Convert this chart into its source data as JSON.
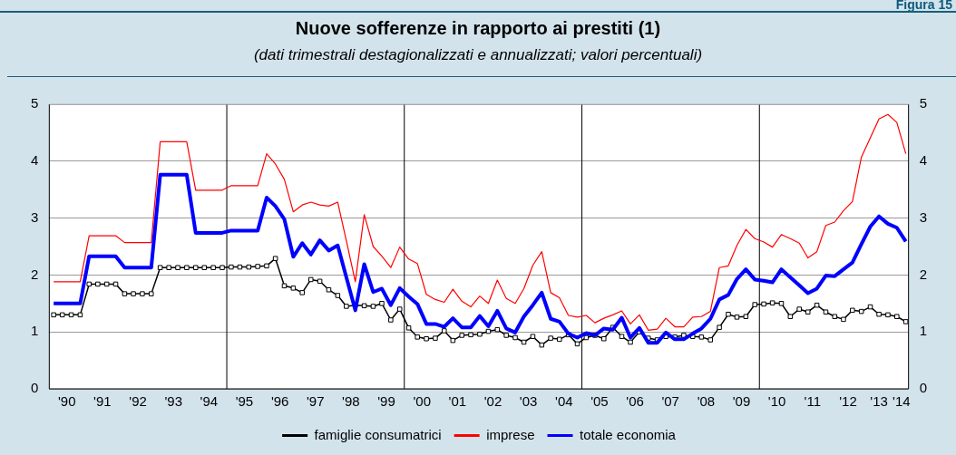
{
  "chart_data": {
    "type": "line",
    "title": "Nuove sofferenze in rapporto ai prestiti (1)",
    "subtitle": "(dati trimestrali destagionalizzati e annualizzati;  valori  percentuali)",
    "annotations": [
      "Figura 15"
    ],
    "x": [
      "1990-02-15",
      "1990-05-15",
      "1990-08-15",
      "1990-11-15",
      "1991-02-15",
      "1991-05-15",
      "1991-08-15",
      "1991-11-15",
      "1992-02-15",
      "1992-05-15",
      "1992-08-15",
      "1992-11-15",
      "1993-02-15",
      "1993-05-15",
      "1993-08-15",
      "1993-11-15",
      "1994-02-15",
      "1994-05-15",
      "1994-08-15",
      "1994-11-15",
      "1995-02-15",
      "1995-05-15",
      "1995-08-15",
      "1995-11-15",
      "1996-02-15",
      "1996-05-15",
      "1996-08-15",
      "1996-11-15",
      "1997-02-15",
      "1997-05-15",
      "1997-08-15",
      "1997-11-15",
      "1998-02-15",
      "1998-05-15",
      "1998-08-15",
      "1998-11-15",
      "1999-02-15",
      "1999-05-15",
      "1999-08-15",
      "1999-11-15",
      "2000-02-15",
      "2000-05-15",
      "2000-08-15",
      "2000-11-15",
      "2001-02-15",
      "2001-05-15",
      "2001-08-15",
      "2001-11-15",
      "2002-02-15",
      "2002-05-15",
      "2002-08-15",
      "2002-11-15",
      "2003-02-15",
      "2003-05-15",
      "2003-08-15",
      "2003-11-15",
      "2004-02-15",
      "2004-05-15",
      "2004-08-15",
      "2004-11-15",
      "2005-02-15",
      "2005-05-15",
      "2005-08-15",
      "2005-11-15",
      "2006-02-15",
      "2006-05-15",
      "2006-08-15",
      "2006-11-15",
      "2007-02-15",
      "2007-05-15",
      "2007-08-15",
      "2007-11-15",
      "2008-02-15",
      "2008-05-15",
      "2008-08-15",
      "2008-11-15",
      "2009-02-15",
      "2009-05-15",
      "2009-08-15",
      "2009-11-15",
      "2010-02-15",
      "2010-05-15",
      "2010-08-15",
      "2010-11-15",
      "2011-02-15",
      "2011-05-15",
      "2011-08-15",
      "2011-11-15",
      "2012-02-15",
      "2012-05-15",
      "2012-08-15",
      "2012-11-15",
      "2013-02-15",
      "2013-05-15",
      "2013-08-15",
      "2013-11-15",
      "2014-02-15"
    ],
    "series": [
      {
        "name": "famiglie consumatrici",
        "color": "#000000",
        "marker": "square",
        "values": [
          1.3,
          1.3,
          1.3,
          1.3,
          1.84,
          1.84,
          1.84,
          1.84,
          1.67,
          1.67,
          1.67,
          1.67,
          2.13,
          2.13,
          2.13,
          2.13,
          2.13,
          2.13,
          2.13,
          2.13,
          2.14,
          2.14,
          2.14,
          2.15,
          2.16,
          2.29,
          1.81,
          1.77,
          1.69,
          1.92,
          1.89,
          1.74,
          1.64,
          1.45,
          1.47,
          1.46,
          1.45,
          1.5,
          1.21,
          1.4,
          1.07,
          0.91,
          0.88,
          0.89,
          1.02,
          0.85,
          0.94,
          0.95,
          0.96,
          1.01,
          1.04,
          0.94,
          0.9,
          0.82,
          0.92,
          0.77,
          0.89,
          0.87,
          0.95,
          0.79,
          0.9,
          0.94,
          0.88,
          1.08,
          0.92,
          0.82,
          1.0,
          0.89,
          0.86,
          0.92,
          0.91,
          0.94,
          0.92,
          0.91,
          0.86,
          1.08,
          1.31,
          1.26,
          1.27,
          1.48,
          1.49,
          1.51,
          1.5,
          1.27,
          1.4,
          1.35,
          1.47,
          1.35,
          1.27,
          1.22,
          1.38,
          1.36,
          1.44,
          1.31,
          1.3,
          1.27,
          1.18
        ]
      },
      {
        "name": "imprese",
        "color": "#ff0000",
        "marker": "none",
        "values": [
          1.88,
          1.88,
          1.88,
          1.88,
          2.69,
          2.69,
          2.69,
          2.69,
          2.57,
          2.57,
          2.57,
          2.57,
          4.34,
          4.34,
          4.34,
          4.34,
          3.49,
          3.49,
          3.49,
          3.49,
          3.57,
          3.57,
          3.57,
          3.57,
          4.13,
          3.95,
          3.68,
          3.11,
          3.23,
          3.28,
          3.23,
          3.21,
          3.28,
          2.6,
          1.88,
          3.06,
          2.5,
          2.33,
          2.13,
          2.49,
          2.28,
          2.2,
          1.66,
          1.57,
          1.52,
          1.75,
          1.54,
          1.44,
          1.63,
          1.5,
          1.91,
          1.59,
          1.5,
          1.76,
          2.17,
          2.41,
          1.69,
          1.6,
          1.29,
          1.26,
          1.29,
          1.16,
          1.24,
          1.3,
          1.37,
          1.14,
          1.3,
          1.03,
          1.05,
          1.24,
          1.09,
          1.09,
          1.26,
          1.27,
          1.36,
          2.13,
          2.16,
          2.52,
          2.8,
          2.64,
          2.58,
          2.49,
          2.71,
          2.64,
          2.56,
          2.3,
          2.41,
          2.87,
          2.93,
          3.13,
          3.29,
          4.07,
          4.41,
          4.74,
          4.82,
          4.68,
          4.13
        ]
      },
      {
        "name": "totale economia",
        "color": "#0000ff",
        "marker": "none",
        "values": [
          1.5,
          1.5,
          1.5,
          1.5,
          2.33,
          2.33,
          2.33,
          2.33,
          2.13,
          2.13,
          2.13,
          2.13,
          3.76,
          3.76,
          3.76,
          3.76,
          2.74,
          2.74,
          2.74,
          2.74,
          2.78,
          2.78,
          2.78,
          2.78,
          3.36,
          3.21,
          2.98,
          2.32,
          2.56,
          2.36,
          2.61,
          2.43,
          2.52,
          1.96,
          1.38,
          2.19,
          1.7,
          1.76,
          1.47,
          1.77,
          1.62,
          1.49,
          1.14,
          1.14,
          1.09,
          1.24,
          1.08,
          1.08,
          1.28,
          1.1,
          1.37,
          1.06,
          0.99,
          1.27,
          1.47,
          1.69,
          1.23,
          1.18,
          0.97,
          0.9,
          0.98,
          0.94,
          1.06,
          1.04,
          1.25,
          0.9,
          1.07,
          0.81,
          0.81,
          0.99,
          0.87,
          0.87,
          0.97,
          1.06,
          1.23,
          1.57,
          1.65,
          1.93,
          2.1,
          1.92,
          1.9,
          1.87,
          2.1,
          1.96,
          1.82,
          1.68,
          1.76,
          1.99,
          1.98,
          2.1,
          2.22,
          2.54,
          2.85,
          3.03,
          2.9,
          2.83,
          2.59
        ]
      }
    ],
    "xlim": [
      "1990-01-01",
      "2014-03-15"
    ],
    "xticks": [
      {
        "value": "1990-07-01",
        "label": "'90"
      },
      {
        "value": "1991-07-01",
        "label": "'91"
      },
      {
        "value": "1992-07-01",
        "label": "'92"
      },
      {
        "value": "1993-07-01",
        "label": "'93"
      },
      {
        "value": "1994-07-01",
        "label": "'94"
      },
      {
        "value": "1995-07-01",
        "label": "'95"
      },
      {
        "value": "1996-07-01",
        "label": "'96"
      },
      {
        "value": "1997-07-01",
        "label": "'97"
      },
      {
        "value": "1998-07-01",
        "label": "'98"
      },
      {
        "value": "1999-07-01",
        "label": "'99"
      },
      {
        "value": "2000-07-01",
        "label": "'00"
      },
      {
        "value": "2001-07-01",
        "label": "'01"
      },
      {
        "value": "2002-07-01",
        "label": "'02"
      },
      {
        "value": "2003-07-01",
        "label": "'03"
      },
      {
        "value": "2004-07-01",
        "label": "'04"
      },
      {
        "value": "2005-07-01",
        "label": "'05"
      },
      {
        "value": "2006-07-01",
        "label": "'06"
      },
      {
        "value": "2007-07-01",
        "label": "'07"
      },
      {
        "value": "2008-07-01",
        "label": "'08"
      },
      {
        "value": "2009-07-01",
        "label": "'09"
      },
      {
        "value": "2010-07-01",
        "label": "'10"
      },
      {
        "value": "2011-07-01",
        "label": "'11"
      },
      {
        "value": "2012-07-01",
        "label": "'12"
      },
      {
        "value": "2013-05-15",
        "label": "'13"
      },
      {
        "value": "2014-01-01",
        "label": "'14"
      }
    ],
    "ylim": [
      0,
      5
    ],
    "yticks": [
      0,
      1,
      2,
      3,
      4,
      5
    ],
    "y2lim": [
      0,
      5
    ],
    "y2ticks": [
      0,
      1,
      2,
      3,
      4,
      5
    ],
    "ref_lines": [
      {
        "axis": "x",
        "value": "1995-01-01",
        "color": "#000000"
      },
      {
        "axis": "x",
        "value": "2000-01-01",
        "color": "#000000"
      },
      {
        "axis": "x",
        "value": "2005-01-01",
        "color": "#000000"
      },
      {
        "axis": "x",
        "value": "2010-01-01",
        "color": "#000000"
      }
    ],
    "grid": "y",
    "legend": "bottom",
    "line_style": "solid"
  }
}
